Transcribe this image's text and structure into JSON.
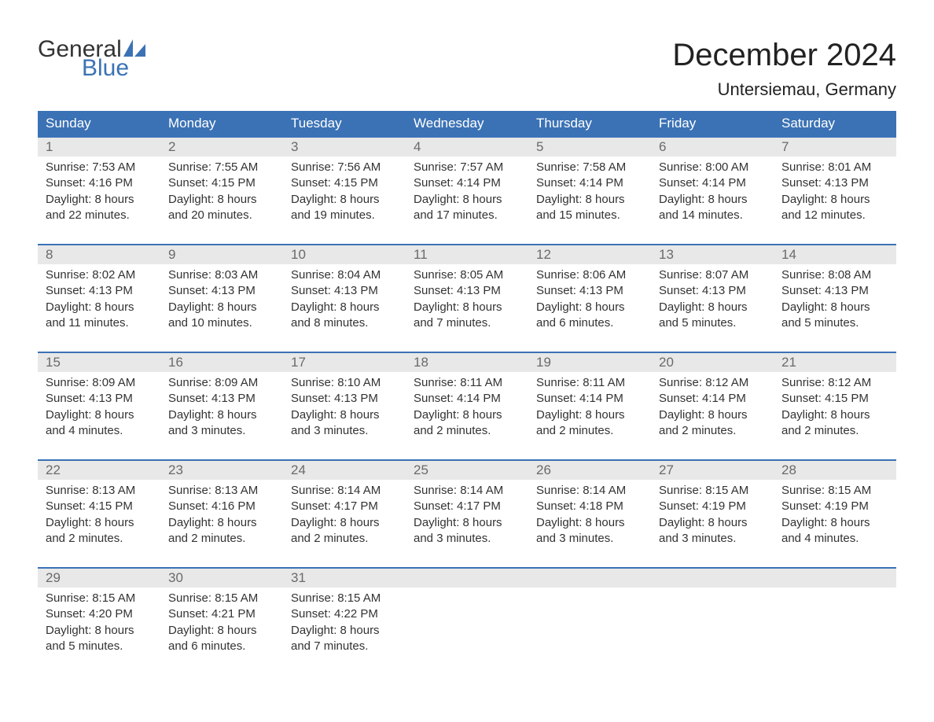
{
  "brand": {
    "word1": "General",
    "word2": "Blue",
    "accent_color": "#3b72b5",
    "text_color": "#333333"
  },
  "title": {
    "month_year": "December 2024",
    "location": "Untersiemau, Germany",
    "title_fontsize_pt": 30,
    "location_fontsize_pt": 17
  },
  "calendar": {
    "type": "table",
    "header_bg": "#3b72b5",
    "header_fg": "#ffffff",
    "week_divider_color": "#3b72b5",
    "daynum_bg": "#e8e8e8",
    "daynum_color": "#6a6a6a",
    "body_text_color": "#333333",
    "body_fontsize_pt": 11,
    "days_of_week": [
      "Sunday",
      "Monday",
      "Tuesday",
      "Wednesday",
      "Thursday",
      "Friday",
      "Saturday"
    ],
    "weeks": [
      [
        {
          "n": "1",
          "sunrise": "Sunrise: 7:53 AM",
          "sunset": "Sunset: 4:16 PM",
          "dl1": "Daylight: 8 hours",
          "dl2": "and 22 minutes."
        },
        {
          "n": "2",
          "sunrise": "Sunrise: 7:55 AM",
          "sunset": "Sunset: 4:15 PM",
          "dl1": "Daylight: 8 hours",
          "dl2": "and 20 minutes."
        },
        {
          "n": "3",
          "sunrise": "Sunrise: 7:56 AM",
          "sunset": "Sunset: 4:15 PM",
          "dl1": "Daylight: 8 hours",
          "dl2": "and 19 minutes."
        },
        {
          "n": "4",
          "sunrise": "Sunrise: 7:57 AM",
          "sunset": "Sunset: 4:14 PM",
          "dl1": "Daylight: 8 hours",
          "dl2": "and 17 minutes."
        },
        {
          "n": "5",
          "sunrise": "Sunrise: 7:58 AM",
          "sunset": "Sunset: 4:14 PM",
          "dl1": "Daylight: 8 hours",
          "dl2": "and 15 minutes."
        },
        {
          "n": "6",
          "sunrise": "Sunrise: 8:00 AM",
          "sunset": "Sunset: 4:14 PM",
          "dl1": "Daylight: 8 hours",
          "dl2": "and 14 minutes."
        },
        {
          "n": "7",
          "sunrise": "Sunrise: 8:01 AM",
          "sunset": "Sunset: 4:13 PM",
          "dl1": "Daylight: 8 hours",
          "dl2": "and 12 minutes."
        }
      ],
      [
        {
          "n": "8",
          "sunrise": "Sunrise: 8:02 AM",
          "sunset": "Sunset: 4:13 PM",
          "dl1": "Daylight: 8 hours",
          "dl2": "and 11 minutes."
        },
        {
          "n": "9",
          "sunrise": "Sunrise: 8:03 AM",
          "sunset": "Sunset: 4:13 PM",
          "dl1": "Daylight: 8 hours",
          "dl2": "and 10 minutes."
        },
        {
          "n": "10",
          "sunrise": "Sunrise: 8:04 AM",
          "sunset": "Sunset: 4:13 PM",
          "dl1": "Daylight: 8 hours",
          "dl2": "and 8 minutes."
        },
        {
          "n": "11",
          "sunrise": "Sunrise: 8:05 AM",
          "sunset": "Sunset: 4:13 PM",
          "dl1": "Daylight: 8 hours",
          "dl2": "and 7 minutes."
        },
        {
          "n": "12",
          "sunrise": "Sunrise: 8:06 AM",
          "sunset": "Sunset: 4:13 PM",
          "dl1": "Daylight: 8 hours",
          "dl2": "and 6 minutes."
        },
        {
          "n": "13",
          "sunrise": "Sunrise: 8:07 AM",
          "sunset": "Sunset: 4:13 PM",
          "dl1": "Daylight: 8 hours",
          "dl2": "and 5 minutes."
        },
        {
          "n": "14",
          "sunrise": "Sunrise: 8:08 AM",
          "sunset": "Sunset: 4:13 PM",
          "dl1": "Daylight: 8 hours",
          "dl2": "and 5 minutes."
        }
      ],
      [
        {
          "n": "15",
          "sunrise": "Sunrise: 8:09 AM",
          "sunset": "Sunset: 4:13 PM",
          "dl1": "Daylight: 8 hours",
          "dl2": "and 4 minutes."
        },
        {
          "n": "16",
          "sunrise": "Sunrise: 8:09 AM",
          "sunset": "Sunset: 4:13 PM",
          "dl1": "Daylight: 8 hours",
          "dl2": "and 3 minutes."
        },
        {
          "n": "17",
          "sunrise": "Sunrise: 8:10 AM",
          "sunset": "Sunset: 4:13 PM",
          "dl1": "Daylight: 8 hours",
          "dl2": "and 3 minutes."
        },
        {
          "n": "18",
          "sunrise": "Sunrise: 8:11 AM",
          "sunset": "Sunset: 4:14 PM",
          "dl1": "Daylight: 8 hours",
          "dl2": "and 2 minutes."
        },
        {
          "n": "19",
          "sunrise": "Sunrise: 8:11 AM",
          "sunset": "Sunset: 4:14 PM",
          "dl1": "Daylight: 8 hours",
          "dl2": "and 2 minutes."
        },
        {
          "n": "20",
          "sunrise": "Sunrise: 8:12 AM",
          "sunset": "Sunset: 4:14 PM",
          "dl1": "Daylight: 8 hours",
          "dl2": "and 2 minutes."
        },
        {
          "n": "21",
          "sunrise": "Sunrise: 8:12 AM",
          "sunset": "Sunset: 4:15 PM",
          "dl1": "Daylight: 8 hours",
          "dl2": "and 2 minutes."
        }
      ],
      [
        {
          "n": "22",
          "sunrise": "Sunrise: 8:13 AM",
          "sunset": "Sunset: 4:15 PM",
          "dl1": "Daylight: 8 hours",
          "dl2": "and 2 minutes."
        },
        {
          "n": "23",
          "sunrise": "Sunrise: 8:13 AM",
          "sunset": "Sunset: 4:16 PM",
          "dl1": "Daylight: 8 hours",
          "dl2": "and 2 minutes."
        },
        {
          "n": "24",
          "sunrise": "Sunrise: 8:14 AM",
          "sunset": "Sunset: 4:17 PM",
          "dl1": "Daylight: 8 hours",
          "dl2": "and 2 minutes."
        },
        {
          "n": "25",
          "sunrise": "Sunrise: 8:14 AM",
          "sunset": "Sunset: 4:17 PM",
          "dl1": "Daylight: 8 hours",
          "dl2": "and 3 minutes."
        },
        {
          "n": "26",
          "sunrise": "Sunrise: 8:14 AM",
          "sunset": "Sunset: 4:18 PM",
          "dl1": "Daylight: 8 hours",
          "dl2": "and 3 minutes."
        },
        {
          "n": "27",
          "sunrise": "Sunrise: 8:15 AM",
          "sunset": "Sunset: 4:19 PM",
          "dl1": "Daylight: 8 hours",
          "dl2": "and 3 minutes."
        },
        {
          "n": "28",
          "sunrise": "Sunrise: 8:15 AM",
          "sunset": "Sunset: 4:19 PM",
          "dl1": "Daylight: 8 hours",
          "dl2": "and 4 minutes."
        }
      ],
      [
        {
          "n": "29",
          "sunrise": "Sunrise: 8:15 AM",
          "sunset": "Sunset: 4:20 PM",
          "dl1": "Daylight: 8 hours",
          "dl2": "and 5 minutes."
        },
        {
          "n": "30",
          "sunrise": "Sunrise: 8:15 AM",
          "sunset": "Sunset: 4:21 PM",
          "dl1": "Daylight: 8 hours",
          "dl2": "and 6 minutes."
        },
        {
          "n": "31",
          "sunrise": "Sunrise: 8:15 AM",
          "sunset": "Sunset: 4:22 PM",
          "dl1": "Daylight: 8 hours",
          "dl2": "and 7 minutes."
        },
        {
          "empty": true
        },
        {
          "empty": true
        },
        {
          "empty": true
        },
        {
          "empty": true
        }
      ]
    ]
  }
}
